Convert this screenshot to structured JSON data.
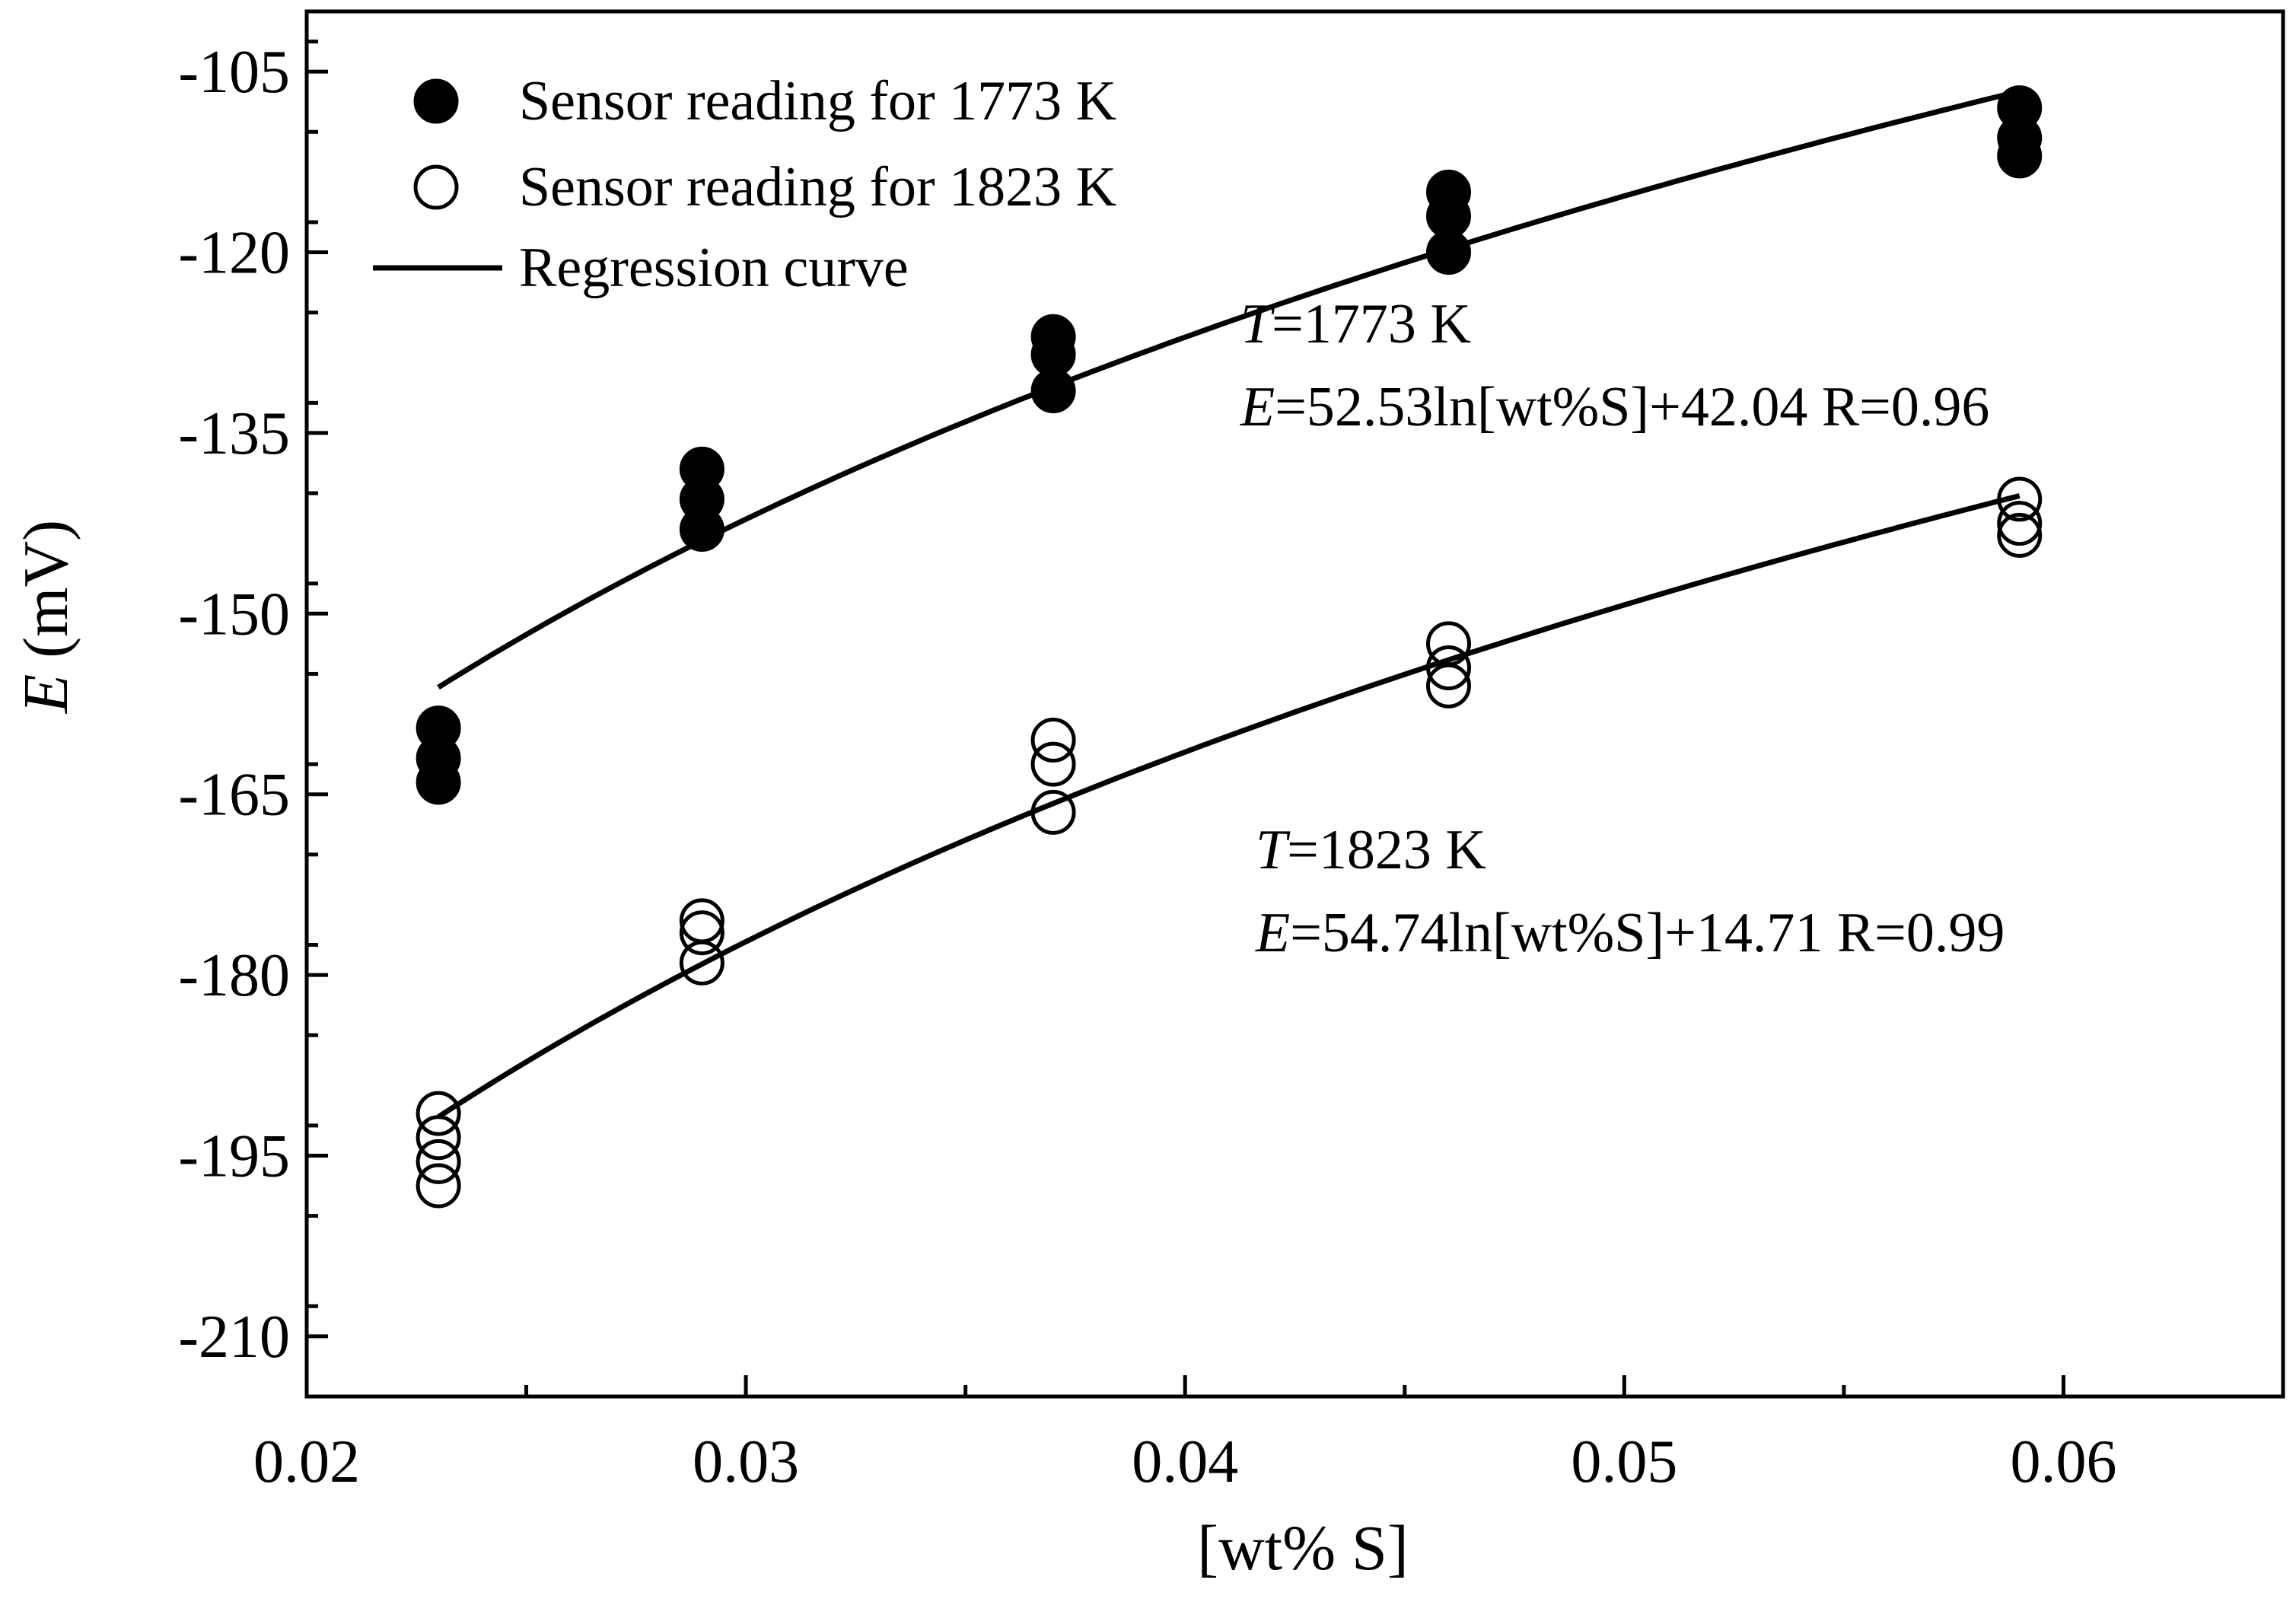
{
  "chart_data": {
    "type": "scatter",
    "title": "",
    "xlabel": "[wt% S]",
    "ylabel_italic": "E",
    "ylabel_unit": " (mV)",
    "xlim": [
      0.02,
      0.065
    ],
    "ylim": [
      -215,
      -100
    ],
    "xticks": [
      0.02,
      0.03,
      0.04,
      0.05,
      0.06
    ],
    "xtick_labels": [
      "0.02",
      "0.03",
      "0.04",
      "0.05",
      "0.06"
    ],
    "yticks": [
      -105,
      -120,
      -135,
      -150,
      -165,
      -180,
      -195,
      -210
    ],
    "ytick_labels": [
      "-105",
      "-120",
      "-135",
      "-150",
      "-165",
      "-180",
      "-195",
      "-210"
    ],
    "grid": false,
    "legend_position": "top-left",
    "series": [
      {
        "name": "Sensor reading for 1773 K",
        "marker": "filled-circle",
        "x": [
          0.023,
          0.023,
          0.023,
          0.029,
          0.029,
          0.029,
          0.037,
          0.037,
          0.037,
          0.046,
          0.046,
          0.046,
          0.059,
          0.059,
          0.059
        ],
        "y": [
          -159.5,
          -162.0,
          -164.0,
          -138.0,
          -140.5,
          -143.0,
          -127.0,
          -128.5,
          -131.5,
          -115.0,
          -117.0,
          -120.0,
          -108.0,
          -110.5,
          -112.0
        ]
      },
      {
        "name": "Sensor reading for 1823 K",
        "marker": "open-circle",
        "x": [
          0.023,
          0.023,
          0.023,
          0.023,
          0.029,
          0.029,
          0.029,
          0.037,
          0.037,
          0.037,
          0.046,
          0.046,
          0.046,
          0.059,
          0.059,
          0.059
        ],
        "y": [
          -191.5,
          -193.5,
          -195.5,
          -197.5,
          -175.5,
          -176.5,
          -179.0,
          -160.5,
          -162.5,
          -166.5,
          -152.5,
          -154.5,
          -156.0,
          -140.5,
          -142.5,
          -143.5
        ]
      }
    ],
    "regression_curves": [
      {
        "label": "Regression curve",
        "a": 52.53,
        "b": 42.04,
        "x_range": [
          0.023,
          0.059
        ]
      },
      {
        "label": "Regression curve",
        "a": 54.74,
        "b": 14.71,
        "x_range": [
          0.023,
          0.059
        ]
      }
    ],
    "legend": [
      {
        "label": "Sensor reading for 1773 K",
        "marker": "filled-circle"
      },
      {
        "label": "Sensor reading for 1823 K",
        "marker": "open-circle"
      },
      {
        "label": "Regression curve",
        "marker": "line"
      }
    ],
    "annotations": [
      {
        "line1_var": "T",
        "line1_rest": "=1773 K",
        "line2_var": "E",
        "line2_rest": "=52.53ln[wt%S]+42.04 R=0.96"
      },
      {
        "line1_var": "T",
        "line1_rest": "=1823 K",
        "line2_var": "E",
        "line2_rest": "=54.74ln[wt%S]+14.71  R=0.99"
      }
    ]
  }
}
